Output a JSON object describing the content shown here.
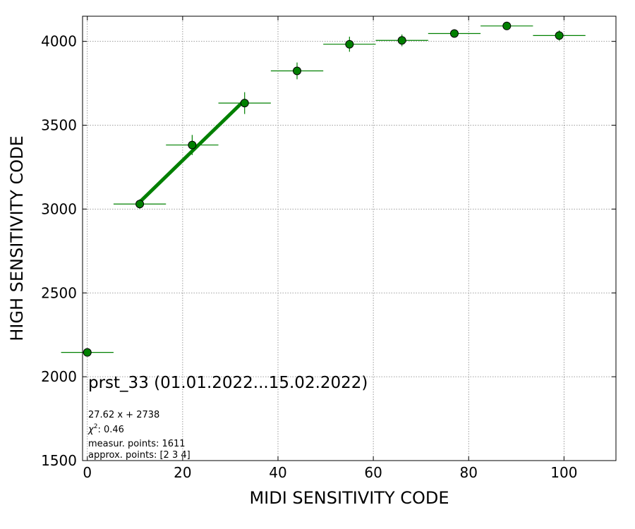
{
  "chart_data": {
    "type": "scatter",
    "xlabel": "MIDI SENSITIVITY CODE",
    "ylabel": "HIGH SENSITIVITY CODE",
    "xlim": [
      -1,
      110.9
    ],
    "ylim": [
      1500,
      4150
    ],
    "xticks": [
      0,
      20,
      40,
      60,
      80,
      100
    ],
    "yticks": [
      1500,
      2000,
      2500,
      3000,
      3500,
      4000
    ],
    "grid": true,
    "colors": {
      "points": "#008000",
      "edge": "#000000",
      "fit": "#008000",
      "grid": "#808080"
    },
    "series": [
      {
        "points": [
          {
            "x": 0,
            "y": 2145,
            "xerr": 5.5,
            "yerr": 0
          },
          {
            "x": 11,
            "y": 3030,
            "xerr": 5.5,
            "yerr": 28
          },
          {
            "x": 22,
            "y": 3382,
            "xerr": 5.5,
            "yerr": 60
          },
          {
            "x": 33,
            "y": 3632,
            "xerr": 5.5,
            "yerr": 65
          },
          {
            "x": 44,
            "y": 3824,
            "xerr": 5.5,
            "yerr": 50
          },
          {
            "x": 55,
            "y": 3983,
            "xerr": 5.5,
            "yerr": 45
          },
          {
            "x": 66,
            "y": 4006,
            "xerr": 5.5,
            "yerr": 35
          },
          {
            "x": 77,
            "y": 4047,
            "xerr": 5.5,
            "yerr": 10
          },
          {
            "x": 88,
            "y": 4092,
            "xerr": 5.5,
            "yerr": 5
          },
          {
            "x": 99,
            "y": 4035,
            "xerr": 5.5,
            "yerr": 30
          }
        ]
      }
    ],
    "fit_line": {
      "slope": 27.62,
      "intercept": 2738,
      "x_range": [
        11,
        33
      ]
    },
    "annotations": {
      "title": "prst_33 (01.01.2022...15.02.2022)",
      "equation": "27.62 x + 2738",
      "chi2_label": "χ",
      "chi2_sup": "2",
      "chi2_value": ": 0.46",
      "measur_points": "measur. points: 1611",
      "approx_points": "approx. points: [2 3 4]"
    }
  }
}
